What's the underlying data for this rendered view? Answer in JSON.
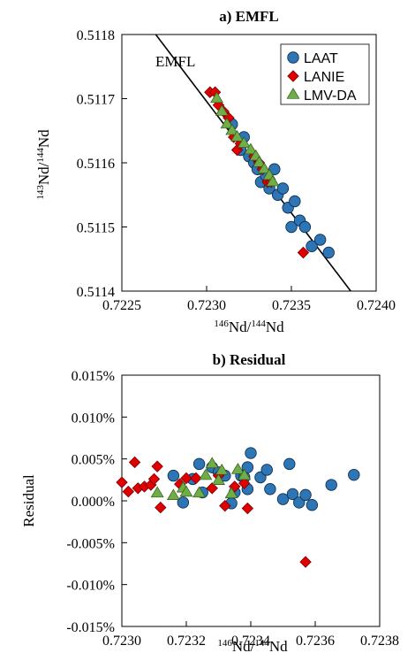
{
  "chart_data": [
    {
      "type": "scatter",
      "title": "a) EMFL",
      "xlabel_parts": [
        "146",
        "Nd/",
        "144",
        "Nd"
      ],
      "ylabel_parts": [
        "143",
        "Nd/",
        "144",
        "Nd"
      ],
      "xlim": [
        0.7225,
        0.724
      ],
      "ylim": [
        0.5114,
        0.5118
      ],
      "xticks": [
        "0.7225",
        "0.7230",
        "0.7235",
        "0.7240"
      ],
      "yticks": [
        "0.5114",
        "0.5115",
        "0.5116",
        "0.5117",
        "0.5118"
      ],
      "grid": false,
      "legend_position": "top-right",
      "line": {
        "label": "EMFL",
        "points": [
          [
            0.7227,
            0.5118
          ],
          [
            0.72385,
            0.5114
          ]
        ]
      },
      "series": [
        {
          "name": "LAAT",
          "marker": "circle",
          "color": "#2e75b6",
          "points": [
            [
              0.72315,
              0.51166
            ],
            [
              0.7232,
              0.51162
            ],
            [
              0.72322,
              0.51164
            ],
            [
              0.72325,
              0.51161
            ],
            [
              0.72328,
              0.5116
            ],
            [
              0.7233,
              0.51159
            ],
            [
              0.72332,
              0.51157
            ],
            [
              0.72335,
              0.51158
            ],
            [
              0.72337,
              0.51156
            ],
            [
              0.7234,
              0.51159
            ],
            [
              0.72342,
              0.51155
            ],
            [
              0.72345,
              0.51156
            ],
            [
              0.72348,
              0.51153
            ],
            [
              0.7235,
              0.5115
            ],
            [
              0.72352,
              0.51154
            ],
            [
              0.72355,
              0.51151
            ],
            [
              0.72358,
              0.5115
            ],
            [
              0.72362,
              0.51147
            ],
            [
              0.72367,
              0.51148
            ],
            [
              0.72372,
              0.51146
            ]
          ]
        },
        {
          "name": "LANIE",
          "marker": "diamond",
          "color": "#e00000",
          "points": [
            [
              0.72302,
              0.51171
            ],
            [
              0.72305,
              0.51171
            ],
            [
              0.72307,
              0.51169
            ],
            [
              0.7231,
              0.51168
            ],
            [
              0.72313,
              0.51167
            ],
            [
              0.72316,
              0.51164
            ],
            [
              0.72318,
              0.51162
            ],
            [
              0.7232,
              0.51163
            ],
            [
              0.72328,
              0.51161
            ],
            [
              0.72331,
              0.5116
            ],
            [
              0.72333,
              0.51159
            ],
            [
              0.72336,
              0.51157
            ],
            [
              0.72338,
              0.51157
            ],
            [
              0.72357,
              0.51146
            ]
          ]
        },
        {
          "name": "LMV-DA",
          "marker": "triangle",
          "color": "#70ad47",
          "points": [
            [
              0.72306,
              0.5117
            ],
            [
              0.72309,
              0.51168
            ],
            [
              0.72312,
              0.51166
            ],
            [
              0.72315,
              0.51165
            ],
            [
              0.72318,
              0.51164
            ],
            [
              0.72322,
              0.51163
            ],
            [
              0.72326,
              0.51162
            ],
            [
              0.72329,
              0.51161
            ],
            [
              0.72331,
              0.5116
            ],
            [
              0.72334,
              0.51159
            ],
            [
              0.72337,
              0.51158
            ],
            [
              0.72339,
              0.51157
            ]
          ]
        }
      ]
    },
    {
      "type": "scatter",
      "title": "b) Residual",
      "xlabel_parts": [
        "146",
        "Nd/",
        "144",
        "Nd"
      ],
      "ylabel": "Residual",
      "xlim": [
        0.723,
        0.7238
      ],
      "ylim": [
        -0.015,
        0.015
      ],
      "xticks": [
        "0.7230",
        "0.7232",
        "0.7234",
        "0.7236",
        "0.7238"
      ],
      "yticks": [
        "-0.015%",
        "-0.010%",
        "-0.005%",
        "0.000%",
        "0.005%",
        "0.010%",
        "0.015%"
      ],
      "grid": false,
      "series": [
        {
          "name": "LAAT",
          "marker": "circle",
          "color": "#2e75b6",
          "points": [
            [
              0.72316,
              0.003
            ],
            [
              0.72319,
              -0.0002
            ],
            [
              0.72322,
              0.0026
            ],
            [
              0.72324,
              0.0044
            ],
            [
              0.72325,
              0.001
            ],
            [
              0.72328,
              0.004
            ],
            [
              0.7233,
              0.0034
            ],
            [
              0.72332,
              0.003
            ],
            [
              0.72334,
              -0.0003
            ],
            [
              0.72335,
              0.001
            ],
            [
              0.72337,
              0.003
            ],
            [
              0.72338,
              0.0028
            ],
            [
              0.72339,
              0.004
            ],
            [
              0.7234,
              0.0057
            ],
            [
              0.72339,
              0.0014
            ],
            [
              0.72343,
              0.0028
            ],
            [
              0.72345,
              0.0037
            ],
            [
              0.72346,
              0.0014
            ],
            [
              0.7235,
              0.0002
            ],
            [
              0.72352,
              0.0044
            ],
            [
              0.72353,
              0.0008
            ],
            [
              0.72355,
              -0.0002
            ],
            [
              0.72357,
              0.0007
            ],
            [
              0.72359,
              -0.0005
            ],
            [
              0.72365,
              0.0019
            ],
            [
              0.72372,
              0.0031
            ]
          ]
        },
        {
          "name": "LANIE",
          "marker": "diamond",
          "color": "#e00000",
          "points": [
            [
              0.723,
              0.0022
            ],
            [
              0.72302,
              0.0011
            ],
            [
              0.72304,
              0.0046
            ],
            [
              0.72305,
              0.0015
            ],
            [
              0.72307,
              0.0017
            ],
            [
              0.72309,
              0.0019
            ],
            [
              0.7231,
              0.0026
            ],
            [
              0.72311,
              0.0041
            ],
            [
              0.72312,
              -0.0008
            ],
            [
              0.72318,
              0.002
            ],
            [
              0.7232,
              0.0027
            ],
            [
              0.72323,
              0.0027
            ],
            [
              0.72328,
              0.0015
            ],
            [
              0.7233,
              0.003
            ],
            [
              0.72332,
              -0.0006
            ],
            [
              0.72335,
              0.0017
            ],
            [
              0.72338,
              0.0021
            ],
            [
              0.72339,
              -0.0009
            ],
            [
              0.72357,
              -0.0073
            ]
          ]
        },
        {
          "name": "LMV-DA",
          "marker": "triangle",
          "color": "#70ad47",
          "points": [
            [
              0.72311,
              0.0009
            ],
            [
              0.72316,
              0.0006
            ],
            [
              0.72319,
              0.0015
            ],
            [
              0.7232,
              0.001
            ],
            [
              0.72324,
              0.0009
            ],
            [
              0.72326,
              0.003
            ],
            [
              0.72328,
              0.0044
            ],
            [
              0.7233,
              0.0024
            ],
            [
              0.72331,
              0.0036
            ],
            [
              0.72334,
              0.0008
            ],
            [
              0.72336,
              0.0037
            ],
            [
              0.72338,
              0.003
            ]
          ]
        }
      ]
    }
  ]
}
